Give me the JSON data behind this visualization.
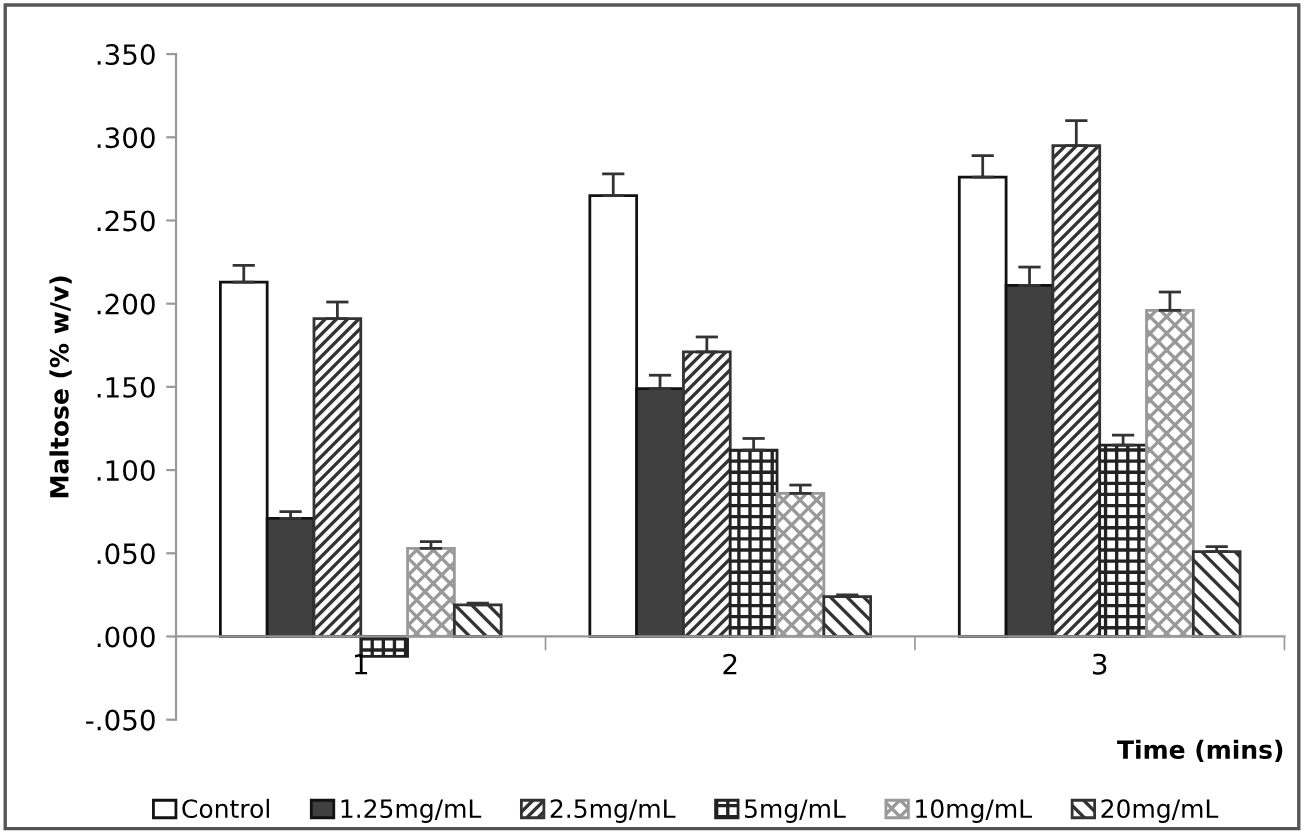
{
  "chart_data": {
    "type": "bar",
    "xlabel": "Time (mins)",
    "ylabel": "Maltose (% w/v)",
    "categories": [
      "1",
      "2",
      "3"
    ],
    "series": [
      {
        "name": "Control",
        "color": "#ffffff",
        "values": [
          0.213,
          0.265,
          0.276
        ],
        "errors": [
          [
            0.213,
            0.223
          ],
          [
            0.265,
            0.278
          ],
          [
            0.276,
            0.289
          ]
        ]
      },
      {
        "name": "1.25mg/mL",
        "color": "#404040",
        "values": [
          0.071,
          0.149,
          0.211
        ],
        "errors": [
          [
            0.071,
            0.075
          ],
          [
            0.149,
            0.157
          ],
          [
            0.211,
            0.222
          ]
        ]
      },
      {
        "name": "2.5mg/mL",
        "color": "#333333",
        "values": [
          0.191,
          0.171,
          0.295
        ],
        "errors": [
          [
            0.191,
            0.201
          ],
          [
            0.171,
            0.18
          ],
          [
            0.295,
            0.31
          ]
        ]
      },
      {
        "name": "5mg/mL",
        "color": "#222222",
        "values": [
          -0.012,
          0.112,
          0.115
        ],
        "errors": [
          null,
          [
            0.112,
            0.119
          ],
          [
            0.115,
            0.121
          ]
        ]
      },
      {
        "name": "10mg/mL",
        "color": "#999999",
        "values": [
          0.053,
          0.086,
          0.196
        ],
        "errors": [
          [
            0.053,
            0.057
          ],
          [
            0.086,
            0.091
          ],
          [
            0.196,
            0.207
          ]
        ]
      },
      {
        "name": "20mg/mL",
        "color": "#333333",
        "values": [
          0.019,
          0.024,
          0.051
        ],
        "errors": [
          [
            0.019,
            0.02
          ],
          [
            0.024,
            0.025
          ],
          [
            0.051,
            0.054
          ]
        ]
      }
    ],
    "ylim": [
      -0.05,
      0.35
    ],
    "yticks": [
      {
        "value": -0.05,
        "label": "-.050"
      },
      {
        "value": 0.0,
        "label": ".000"
      },
      {
        "value": 0.05,
        "label": ".050"
      },
      {
        "value": 0.1,
        "label": ".100"
      },
      {
        "value": 0.15,
        "label": ".150"
      },
      {
        "value": 0.2,
        "label": ".200"
      },
      {
        "value": 0.25,
        "label": ".250"
      },
      {
        "value": 0.3,
        "label": ".300"
      },
      {
        "value": 0.35,
        "label": ".350"
      }
    ],
    "legend": "bottom"
  }
}
